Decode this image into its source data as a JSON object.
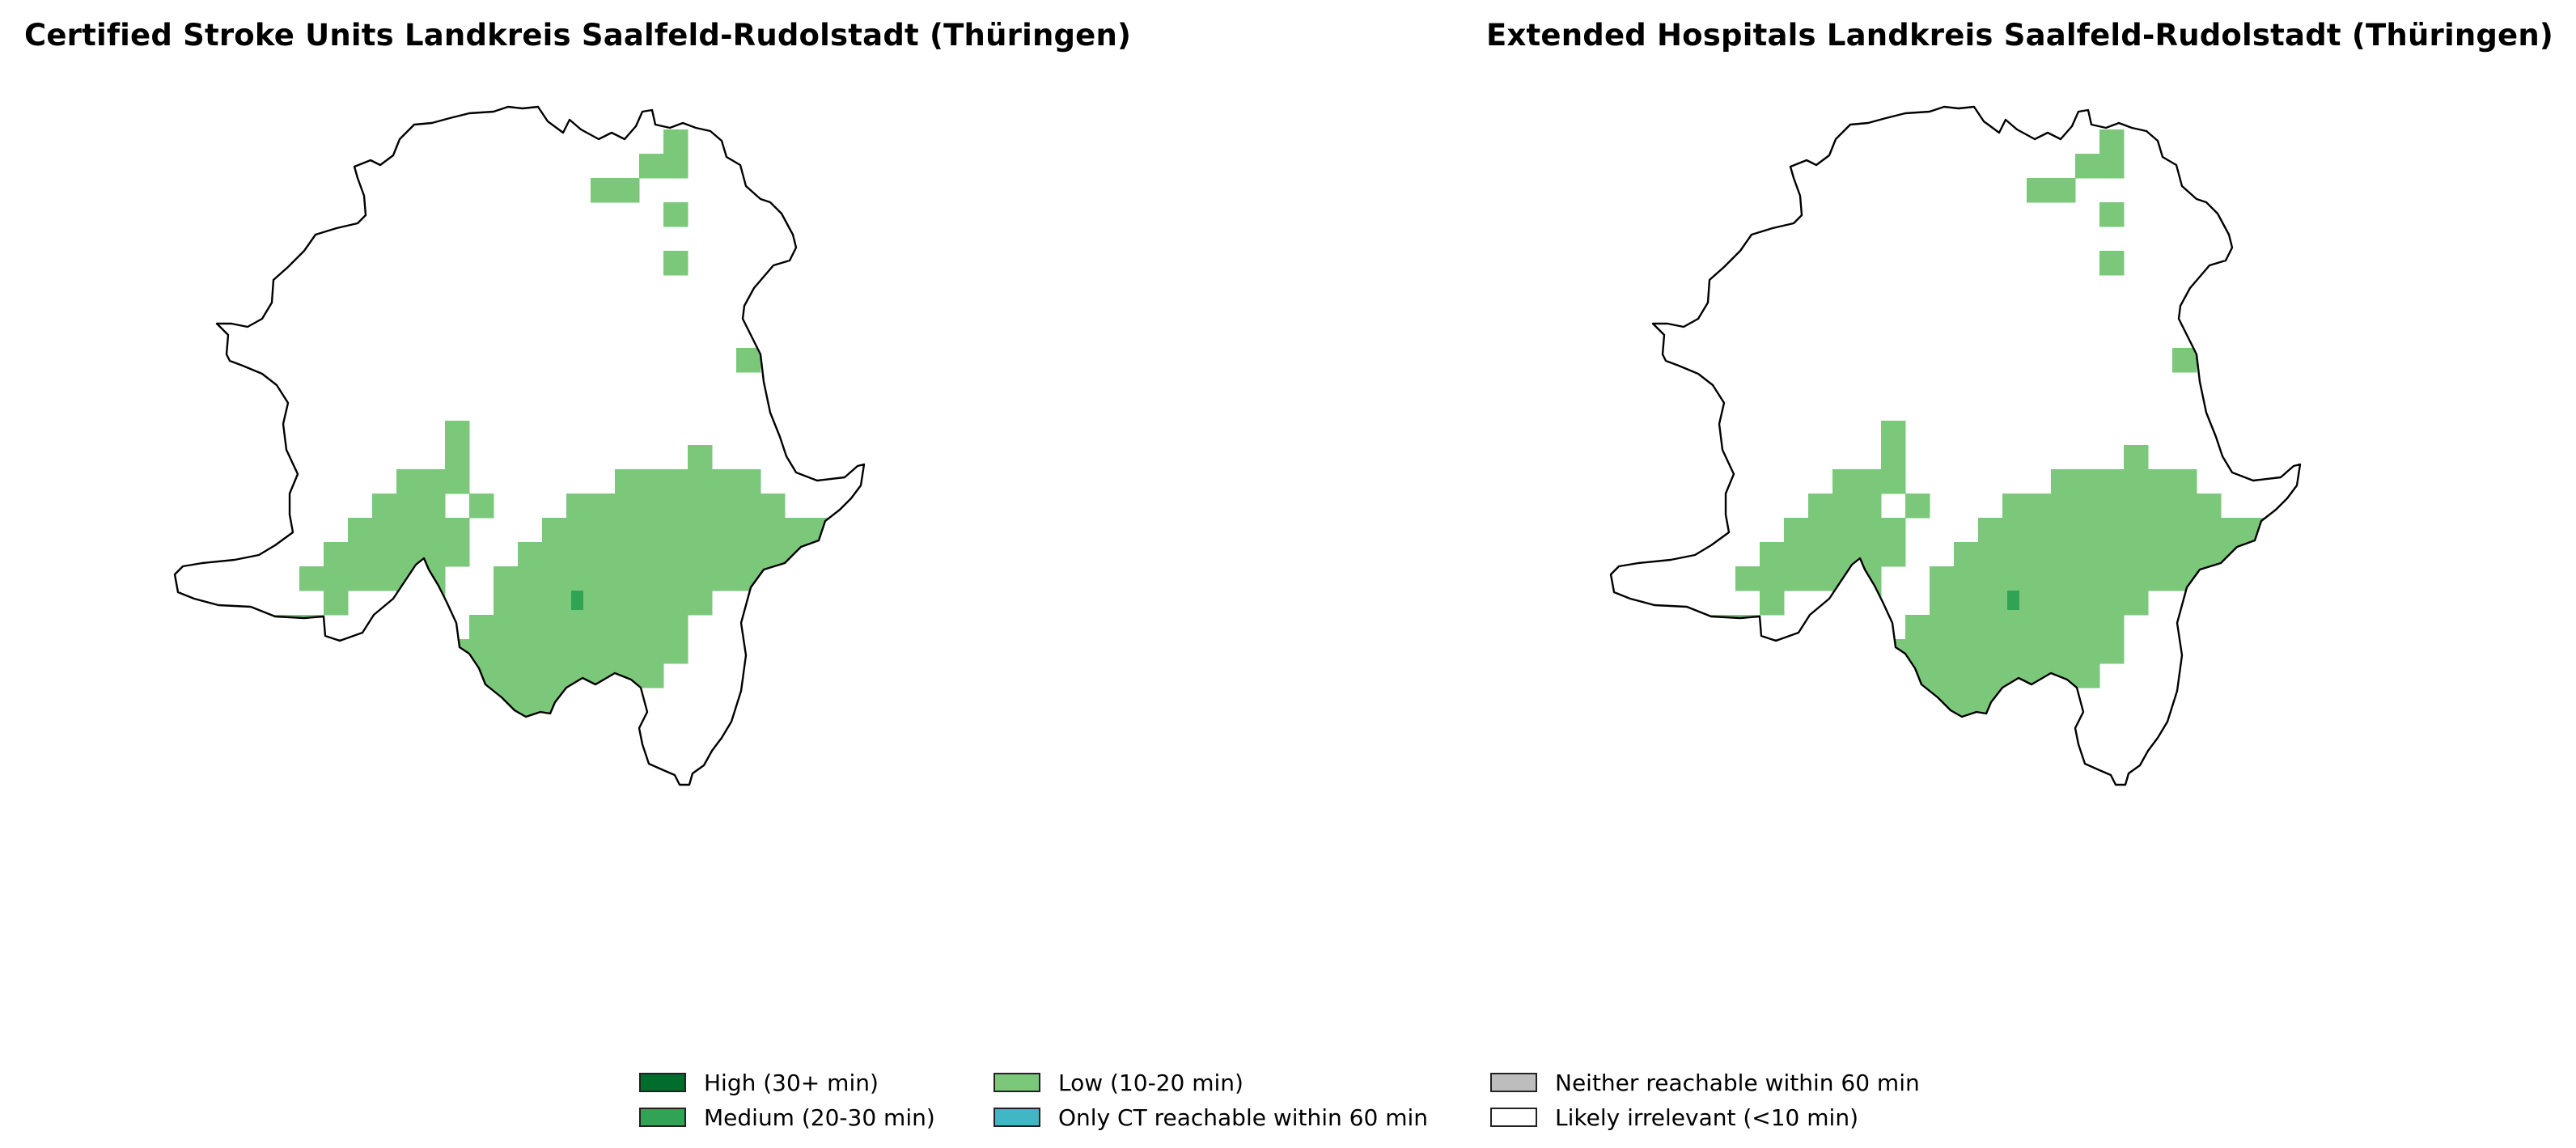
{
  "panels": [
    {
      "title": "Certified Stroke Units Landkreis Saalfeld-Rudolstadt (Thüringen)"
    },
    {
      "title": "Extended Hospitals Landkreis Saalfeld-Rudolstadt (Thüringen)"
    }
  ],
  "colors": {
    "high": "#006d2c",
    "medium": "#31a354",
    "low": "#7bc87b",
    "only_ct": "#41b6c4",
    "neither": "#bdbdbd",
    "irrelevant": "#ffffff",
    "border": "#000000"
  },
  "legend": [
    {
      "label": "High (30+ min)",
      "color": "#006d2c"
    },
    {
      "label": "Medium (20-30 min)",
      "color": "#31a354"
    },
    {
      "label": "Low (10-20 min)",
      "color": "#7bc87b"
    },
    {
      "label": "Only CT reachable within 60 min",
      "color": "#41b6c4"
    },
    {
      "label": "Neither reachable within 60 min",
      "color": "#bdbdbd"
    },
    {
      "label": "Likely irrelevant (<10 min)",
      "color": "#ffffff"
    }
  ]
}
